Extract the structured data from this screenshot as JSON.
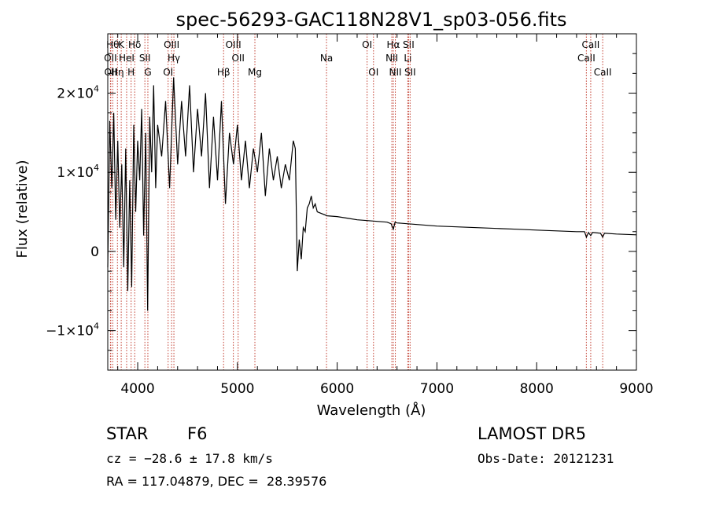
{
  "chart_data": {
    "type": "line",
    "title": "spec-56293-GAC118N28V1_sp03-056.fits",
    "xlabel": "Wavelength (Å)",
    "ylabel": "Flux (relative)",
    "xlim": [
      3700,
      9000
    ],
    "ylim": [
      -15000,
      27500
    ],
    "x_ticks": [
      {
        "value": 4000,
        "label": "4000"
      },
      {
        "value": 5000,
        "label": "5000"
      },
      {
        "value": 6000,
        "label": "6000"
      },
      {
        "value": 7000,
        "label": "7000"
      },
      {
        "value": 8000,
        "label": "8000"
      },
      {
        "value": 9000,
        "label": "9000"
      }
    ],
    "y_ticks": [
      {
        "value": -10000,
        "label": "−1×10",
        "exp": "4"
      },
      {
        "value": 0,
        "label": "0",
        "exp": ""
      },
      {
        "value": 10000,
        "label": "1×10",
        "exp": "4"
      },
      {
        "value": 20000,
        "label": "2×10",
        "exp": "4"
      }
    ],
    "lines": [
      {
        "x": 3750,
        "label": "Hθ",
        "row": 0
      },
      {
        "x": 3727,
        "label": "OII",
        "row": 1
      },
      {
        "x": 3730,
        "label": "OII",
        "row": 2
      },
      {
        "x": 3797,
        "label": "Hη",
        "row": 2
      },
      {
        "x": 3835,
        "label": "K",
        "row": 0
      },
      {
        "x": 3889,
        "label": "HeI",
        "row": 1
      },
      {
        "x": 3934,
        "label": "H",
        "row": 2
      },
      {
        "x": 3970,
        "label": "Hδ",
        "row": 0
      },
      {
        "x": 4072,
        "label": "SII",
        "row": 1
      },
      {
        "x": 4102,
        "label": "G",
        "row": 2
      },
      {
        "x": 4340,
        "label": "OIII",
        "row": 0
      },
      {
        "x": 4363,
        "label": "Hγ",
        "row": 1
      },
      {
        "x": 4305,
        "label": "OI",
        "row": 2
      },
      {
        "x": 4861,
        "label": "Hβ",
        "row": 2
      },
      {
        "x": 4959,
        "label": "OIII",
        "row": 0
      },
      {
        "x": 5007,
        "label": "OII",
        "row": 1
      },
      {
        "x": 5175,
        "label": "Mg",
        "row": 2
      },
      {
        "x": 5893,
        "label": "Na",
        "row": 1
      },
      {
        "x": 6300,
        "label": "OI",
        "row": 0
      },
      {
        "x": 6364,
        "label": "OI",
        "row": 2
      },
      {
        "x": 6563,
        "label": "Hα",
        "row": 0
      },
      {
        "x": 6548,
        "label": "NII",
        "row": 1
      },
      {
        "x": 6583,
        "label": "NII",
        "row": 2
      },
      {
        "x": 6708,
        "label": "Li",
        "row": 1
      },
      {
        "x": 6716,
        "label": "SII",
        "row": 0
      },
      {
        "x": 6731,
        "label": "SII",
        "row": 2
      },
      {
        "x": 8498,
        "label": "CaII",
        "row": 1
      },
      {
        "x": 8542,
        "label": "CaII",
        "row": 0
      },
      {
        "x": 8662,
        "label": "CaII",
        "row": 2
      }
    ],
    "series": [
      {
        "x": [
          3700,
          3720,
          3740,
          3760,
          3780,
          3800,
          3820,
          3840,
          3860,
          3880,
          3900,
          3920,
          3940,
          3960,
          3980,
          4000,
          4020,
          4040,
          4060,
          4080,
          4100,
          4120,
          4140,
          4160,
          4180,
          4200,
          4240,
          4280,
          4320,
          4360,
          4400,
          4440,
          4480,
          4520,
          4560,
          4600,
          4640,
          4680,
          4720,
          4760,
          4800,
          4840,
          4880,
          4920,
          4960,
          5000,
          5040,
          5080,
          5120,
          5160,
          5200,
          5240,
          5280,
          5320,
          5360,
          5400,
          5440,
          5480,
          5520,
          5560,
          5580,
          5600,
          5620,
          5640,
          5660,
          5680,
          5700,
          5720,
          5740,
          5760,
          5780,
          5800,
          5900,
          6000,
          6100,
          6200,
          6300,
          6400,
          6500,
          6540,
          6563,
          6580,
          6600,
          6700,
          6800,
          6900,
          7000,
          7200,
          7400,
          7600,
          7800,
          8000,
          8200,
          8400,
          8480,
          8498,
          8520,
          8542,
          8560,
          8640,
          8662,
          8680,
          8800,
          9000
        ],
        "y": [
          -2000,
          16500,
          8000,
          17500,
          4000,
          14000,
          3000,
          11000,
          -2000,
          13000,
          -5000,
          9000,
          -4500,
          16000,
          5000,
          14000,
          9000,
          18000,
          2000,
          15000,
          -7500,
          17000,
          10000,
          21000,
          8000,
          16000,
          12000,
          19000,
          8000,
          22000,
          11000,
          19000,
          12000,
          21000,
          10000,
          18000,
          12000,
          20000,
          8000,
          17000,
          9000,
          19000,
          6000,
          15000,
          11000,
          16000,
          9000,
          14000,
          8000,
          13000,
          10000,
          15000,
          7000,
          13000,
          9000,
          12000,
          8000,
          11000,
          9000,
          14000,
          13000,
          -2500,
          1500,
          -1000,
          3000,
          2500,
          5500,
          6000,
          7000,
          5500,
          6000,
          5000,
          4500,
          4400,
          4200,
          4000,
          3900,
          3800,
          3700,
          3500,
          2800,
          3700,
          3600,
          3500,
          3400,
          3300,
          3200,
          3100,
          3000,
          2900,
          2800,
          2700,
          2600,
          2500,
          2500,
          1800,
          2400,
          2000,
          2400,
          2300,
          1800,
          2300,
          2200,
          2100
        ]
      }
    ]
  },
  "info": {
    "object_class": "STAR",
    "subclass": "F6",
    "survey": "LAMOST DR5",
    "cz": "cz = −28.6 ± 17.8 km/s",
    "obs_date": "Obs-Date: 20121231",
    "coords": "RA = 117.04879, DEC =  28.39576"
  }
}
